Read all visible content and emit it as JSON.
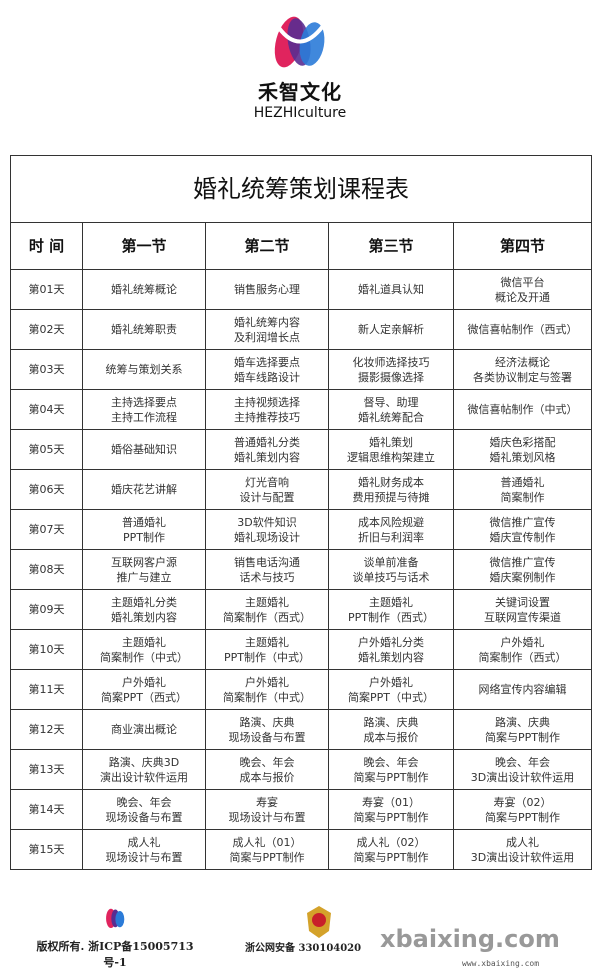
{
  "logo": {
    "cn": "禾智文化",
    "en": "HEZHIculture",
    "colors": [
      "#e0245e",
      "#5a2d91",
      "#2b7bd8"
    ]
  },
  "table": {
    "title": "婚礼统筹策划课程表",
    "headers": [
      "时 间",
      "第一节",
      "第二节",
      "第三节",
      "第四节"
    ],
    "rows": [
      [
        "第01天",
        "婚礼统筹概论",
        "销售服务心理",
        "婚礼道具认知",
        "微信平台\n概论及开通"
      ],
      [
        "第02天",
        "婚礼统筹职责",
        "婚礼统筹内容\n及利润增长点",
        "新人定亲解析",
        "微信喜帖制作（西式）"
      ],
      [
        "第03天",
        "统筹与策划关系",
        "婚车选择要点\n婚车线路设计",
        "化妆师选择技巧\n摄影摄像选择",
        "经济法概论\n各类协议制定与签署"
      ],
      [
        "第04天",
        "主持选择要点\n主持工作流程",
        "主持视频选择\n主持推荐技巧",
        "督导、助理\n婚礼统筹配合",
        "微信喜帖制作（中式）"
      ],
      [
        "第05天",
        "婚俗基础知识",
        "普通婚礼分类\n婚礼策划内容",
        "婚礼策划\n逻辑思维构架建立",
        "婚庆色彩搭配\n婚礼策划风格"
      ],
      [
        "第06天",
        "婚庆花艺讲解",
        "灯光音响\n设计与配置",
        "婚礼财务成本\n费用预提与待摊",
        "普通婚礼\n简案制作"
      ],
      [
        "第07天",
        "普通婚礼\nPPT制作",
        "3D软件知识\n婚礼现场设计",
        "成本风险规避\n折旧与利润率",
        "微信推广宣传\n婚庆宣传制作"
      ],
      [
        "第08天",
        "互联网客户源\n推广与建立",
        "销售电话沟通\n话术与技巧",
        "谈单前准备\n谈单技巧与话术",
        "微信推广宣传\n婚庆案例制作"
      ],
      [
        "第09天",
        "主题婚礼分类\n婚礼策划内容",
        "主题婚礼\n简案制作（西式）",
        "主题婚礼\nPPT制作（西式）",
        "关键词设置\n互联网宣传渠道"
      ],
      [
        "第10天",
        "主题婚礼\n简案制作（中式）",
        "主题婚礼\nPPT制作（中式）",
        "户外婚礼分类\n婚礼策划内容",
        "户外婚礼\n简案制作（西式）"
      ],
      [
        "第11天",
        "户外婚礼\n简案PPT（西式）",
        "户外婚礼\n简案制作（中式）",
        "户外婚礼\n简案PPT（中式）",
        "网络宣传内容编辑"
      ],
      [
        "第12天",
        "商业演出概论",
        "路演、庆典\n现场设备与布置",
        "路演、庆典\n成本与报价",
        "路演、庆典\n简案与PPT制作"
      ],
      [
        "第13天",
        "路演、庆典3D\n演出设计软件运用",
        "晚会、年会\n成本与报价",
        "晚会、年会\n简案与PPT制作",
        "晚会、年会\n3D演出设计软件运用"
      ],
      [
        "第14天",
        "晚会、年会\n现场设备与布置",
        "寿宴\n现场设计与布置",
        "寿宴（01）\n简案与PPT制作",
        "寿宴（02）\n简案与PPT制作"
      ],
      [
        "第15天",
        "成人礼\n现场设计与布置",
        "成人礼（01）\n简案与PPT制作",
        "成人礼（02）\n简案与PPT制作",
        "成人礼\n3D演出设计软件运用"
      ]
    ]
  },
  "footer": {
    "copyright": "版权所有. 浙ICP备15005713号-1",
    "police_record": "浙公网安备 330104020",
    "police_icon": "police-badge-icon",
    "watermark": "xbaixing.com",
    "watermark_url": "www.xbaixing.com"
  }
}
